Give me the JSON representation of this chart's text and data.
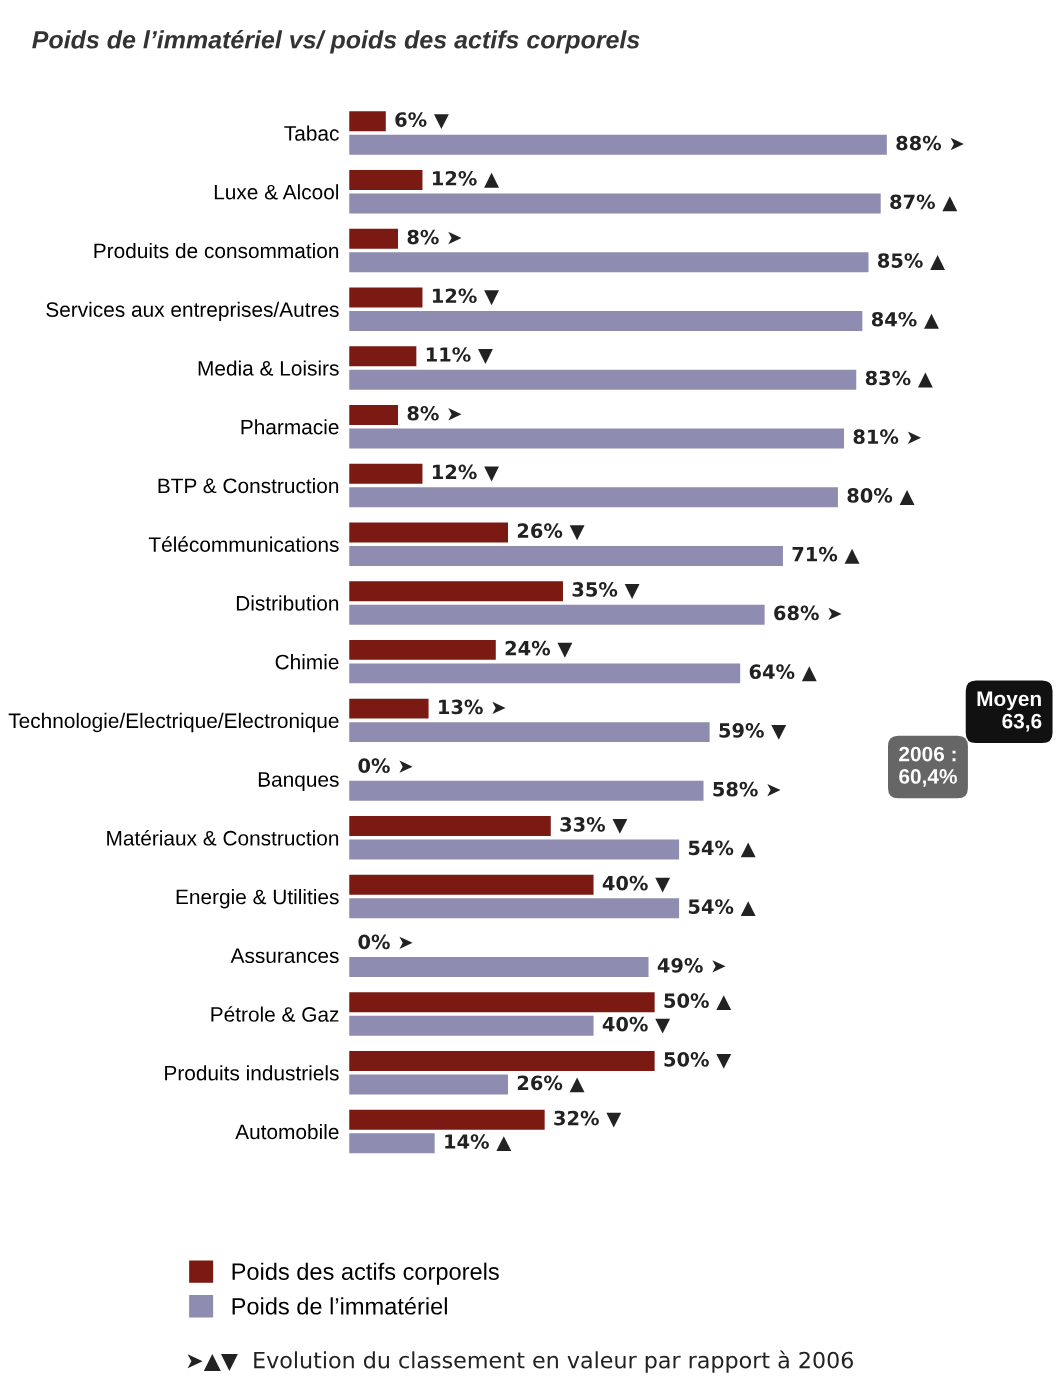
{
  "chart_data": {
    "type": "bar",
    "orientation": "horizontal",
    "title": "Poids de l’immatériel vs/ poids des actifs corporels",
    "categories": [
      "Tabac",
      "Luxe & Alcool",
      "Produits de consommation",
      "Services aux entreprises/Autres",
      "Media & Loisirs",
      "Pharmacie",
      "BTP & Construction",
      "Télécommunications",
      "Distribution",
      "Chimie",
      "Technologie/Electrique/Electronique",
      "Banques",
      "Matériaux & Construction",
      "Energie & Utilities",
      "Assurances",
      "Pétrole & Gaz",
      "Produits industriels",
      "Automobile"
    ],
    "series": [
      {
        "name": "Poids des actifs corporels",
        "color": "#7a1a12",
        "values": [
          6,
          12,
          8,
          12,
          11,
          8,
          12,
          26,
          35,
          24,
          13,
          0,
          33,
          40,
          0,
          50,
          50,
          32
        ],
        "value_labels": [
          "6% ▼",
          "12% ▲",
          "8% ➤",
          "12% ▼",
          "11% ▼",
          "8% ➤",
          "12% ▼",
          "26% ▼",
          "35% ▼",
          "24% ▼",
          "13% ➤",
          "0% ➤",
          "33% ▼",
          "40% ▼",
          "0% ➤",
          "50% ▲",
          "50% ▼",
          "32% ▼"
        ]
      },
      {
        "name": "Poids de l’immatériel",
        "color": "#8e8cb0",
        "values": [
          88,
          87,
          85,
          84,
          83,
          81,
          80,
          71,
          68,
          64,
          59,
          58,
          54,
          54,
          49,
          40,
          26,
          14
        ],
        "value_labels": [
          "88% ➤",
          "87% ▲",
          "85% ▲",
          "84% ▲",
          "83% ▲",
          "81% ➤",
          "80% ▲",
          "71% ▲",
          "68% ➤",
          "64% ▲",
          "59% ▼",
          "58% ➤",
          "54% ▲",
          "54% ▲",
          "49% ➤",
          "40% ▼",
          "26% ▲",
          "14% ▲"
        ]
      }
    ],
    "legend": "bottom",
    "annotations": [
      "Moyen\n63,6",
      "2006 :\n60,4%",
      "➤▲▼  Evolution du classement en valeur par rapport à 2006"
    ]
  }
}
